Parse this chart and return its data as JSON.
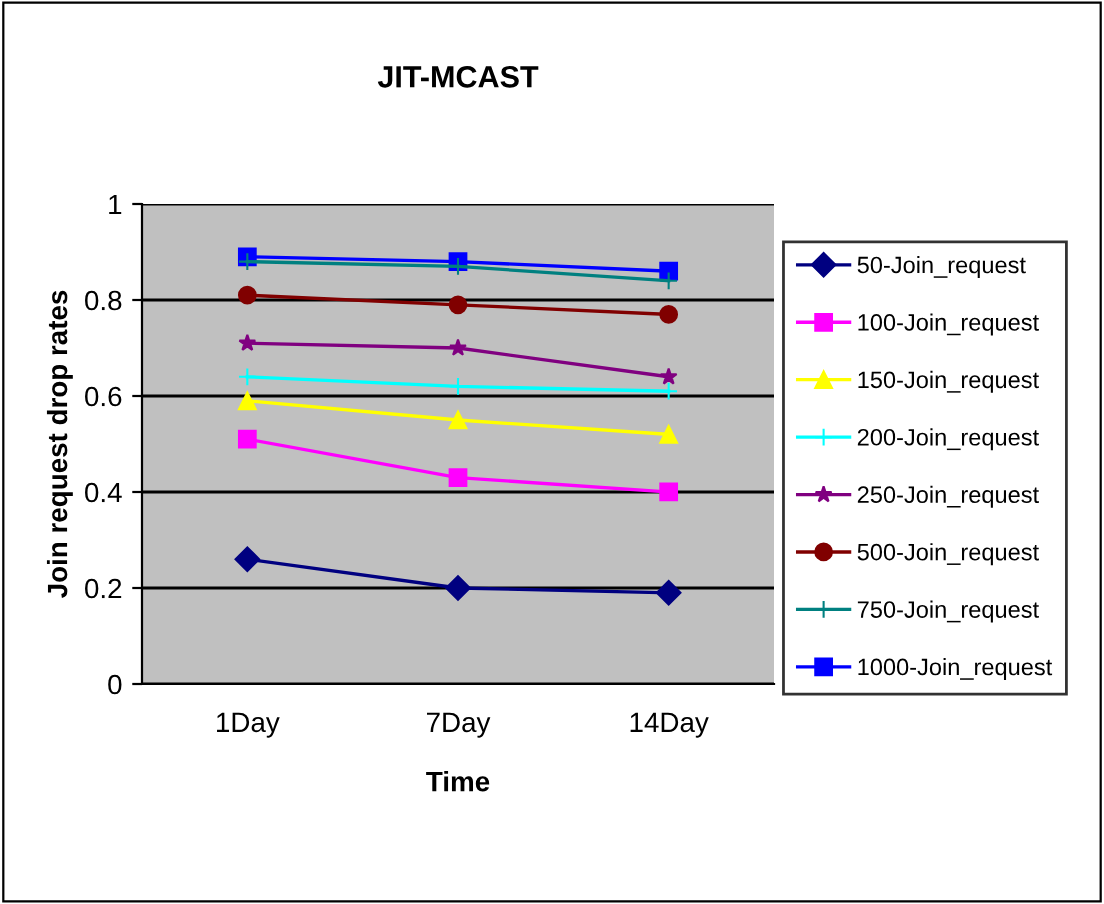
{
  "chart_data": {
    "type": "line",
    "title": "JIT-MCAST",
    "xlabel": "Time",
    "ylabel": "Join request drop rates",
    "categories": [
      "1Day",
      "7Day",
      "14Day"
    ],
    "series": [
      {
        "name": "50-Join_request",
        "color": "#000080",
        "marker": "diamond",
        "values": [
          0.26,
          0.2,
          0.19
        ]
      },
      {
        "name": "100-Join_request",
        "color": "#ff00ff",
        "marker": "square",
        "values": [
          0.51,
          0.43,
          0.4
        ]
      },
      {
        "name": "150-Join_request",
        "color": "#ffff00",
        "marker": "triangle",
        "values": [
          0.59,
          0.55,
          0.52
        ]
      },
      {
        "name": "200-Join_request",
        "color": "#00ffff",
        "marker": "cross",
        "values": [
          0.64,
          0.62,
          0.61
        ]
      },
      {
        "name": "250-Join_request",
        "color": "#800080",
        "marker": "star",
        "values": [
          0.71,
          0.7,
          0.64
        ]
      },
      {
        "name": "500-Join_request",
        "color": "#800000",
        "marker": "circle",
        "values": [
          0.81,
          0.79,
          0.77
        ]
      },
      {
        "name": "750-Join_request",
        "color": "#008080",
        "marker": "cross",
        "values": [
          0.88,
          0.87,
          0.84
        ]
      },
      {
        "name": "1000-Join_request",
        "color": "#0000ff",
        "marker": "square",
        "values": [
          0.89,
          0.88,
          0.86
        ]
      }
    ],
    "ylim": [
      0,
      1
    ],
    "yticks": [
      0,
      0.2,
      0.4,
      0.6,
      0.8,
      1
    ],
    "grid": "y",
    "legend": "right"
  }
}
